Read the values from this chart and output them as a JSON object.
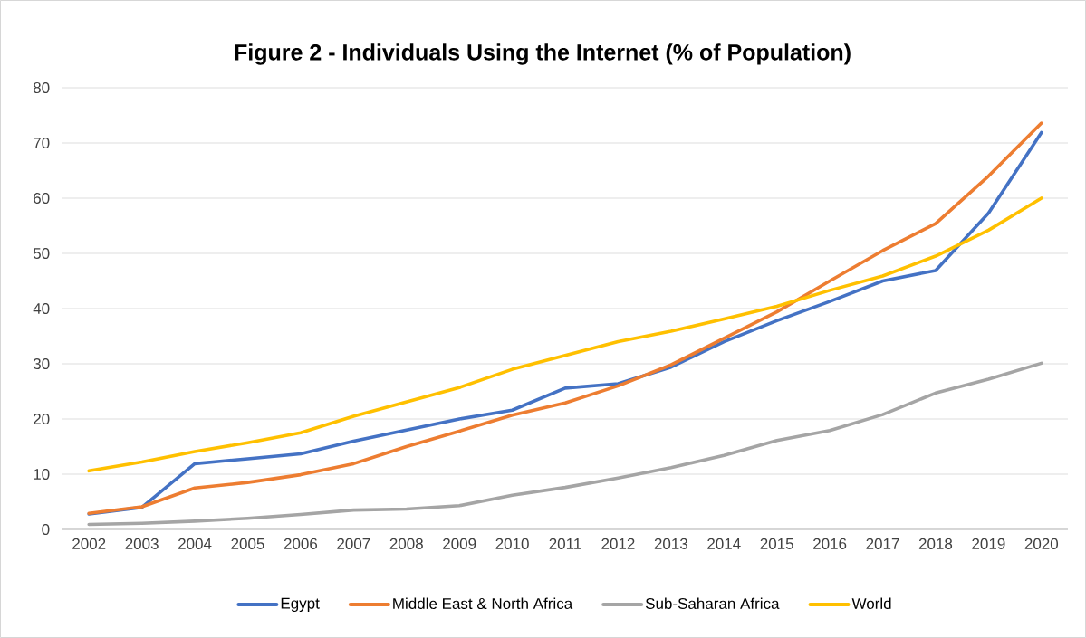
{
  "chart_data": {
    "type": "line",
    "title": "Figure 2 - Individuals Using the Internet (% of Population)",
    "categories": [
      "2002",
      "2003",
      "2004",
      "2005",
      "2006",
      "2007",
      "2008",
      "2009",
      "2010",
      "2011",
      "2012",
      "2013",
      "2014",
      "2015",
      "2016",
      "2017",
      "2018",
      "2019",
      "2020"
    ],
    "series": [
      {
        "name": "Egypt",
        "color": "#4472c4",
        "values": [
          2.8,
          4.0,
          11.9,
          12.8,
          13.7,
          16.0,
          18.0,
          20.0,
          21.6,
          25.6,
          26.4,
          29.4,
          34.0,
          37.8,
          41.3,
          45.0,
          46.9,
          57.3,
          71.9
        ]
      },
      {
        "name": "Middle East & North Africa",
        "color": "#ed7d31",
        "values": [
          2.9,
          4.1,
          7.5,
          8.5,
          9.9,
          11.9,
          15.0,
          17.8,
          20.7,
          22.9,
          26.0,
          29.8,
          34.6,
          39.4,
          45.0,
          50.5,
          55.4,
          64.0,
          73.6
        ]
      },
      {
        "name": "Sub-Saharan Africa",
        "color": "#a5a5a5",
        "values": [
          0.9,
          1.1,
          1.5,
          2.0,
          2.7,
          3.5,
          3.7,
          4.3,
          6.2,
          7.6,
          9.3,
          11.2,
          13.4,
          16.1,
          17.9,
          20.8,
          24.7,
          27.2,
          30.1
        ]
      },
      {
        "name": "World",
        "color": "#ffc000",
        "values": [
          10.6,
          12.2,
          14.1,
          15.7,
          17.5,
          20.5,
          23.1,
          25.7,
          29.0,
          31.5,
          34.0,
          35.9,
          38.1,
          40.4,
          43.3,
          45.9,
          49.5,
          54.2,
          60.0
        ]
      }
    ],
    "ylim": [
      0,
      80
    ],
    "yticks": [
      0,
      10,
      20,
      30,
      40,
      50,
      60,
      70,
      80
    ],
    "grid": "y",
    "legend": "bottom",
    "marker": "none",
    "line_style": "solid"
  }
}
